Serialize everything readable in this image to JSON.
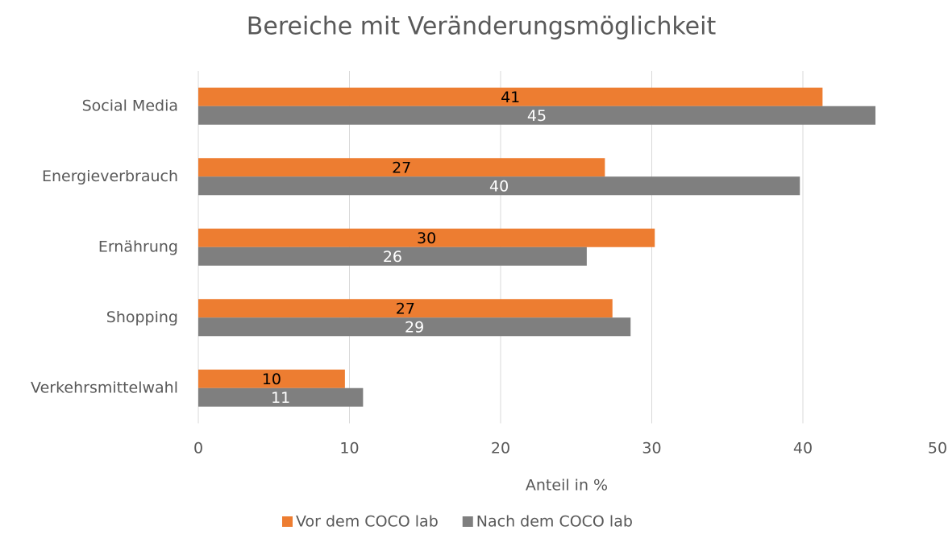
{
  "chart_data": {
    "type": "hbar",
    "title": "Bereiche mit Veränderungsmöglichkeit",
    "x_label": "Anteil in %",
    "categories": [
      "Social Media",
      "Energieverbrauch",
      "Ernährung",
      "Shopping",
      "Verkehrsmittelwahl"
    ],
    "series": [
      {
        "name": "Vor dem COCO lab",
        "color": "#ed7d31",
        "values": [
          41.3,
          26.9,
          30.2,
          27.4,
          9.7
        ],
        "value_labels": [
          "41",
          "27",
          "30",
          "27",
          "10"
        ],
        "label_color": "#000000"
      },
      {
        "name": "Nach dem COCO lab",
        "color": "#7f7f7f",
        "values": [
          44.8,
          39.8,
          25.7,
          28.6,
          10.9
        ],
        "value_labels": [
          "45",
          "40",
          "26",
          "29",
          "11"
        ],
        "label_color": "#ffffff"
      }
    ],
    "xlim": [
      0,
      50
    ],
    "xticks": [
      0,
      10,
      20,
      30,
      40,
      50
    ],
    "grid": true,
    "legend": "bottom"
  }
}
